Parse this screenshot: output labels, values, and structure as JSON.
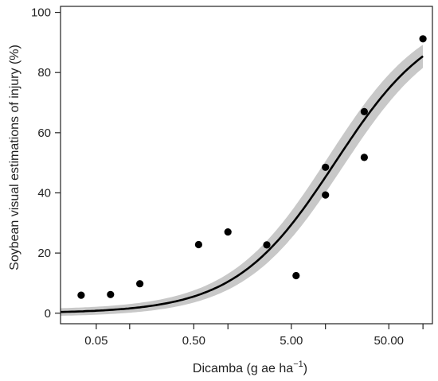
{
  "chart_data": {
    "type": "scatter",
    "xlabel": "Dicamba (g ae ha",
    "xlabel_superscript": "−1",
    "xlabel_suffix": ")",
    "ylabel": "Soybean visual estimations of injury (%)",
    "x_scale": "log",
    "xlim": [
      0.0215,
      140
    ],
    "ylim": [
      -3.5,
      102
    ],
    "x_ticks_major": [
      {
        "value": 0.05,
        "label": "0.05"
      },
      {
        "value": 0.5,
        "label": "0.50"
      },
      {
        "value": 5,
        "label": "5.00"
      },
      {
        "value": 50,
        "label": "50.00"
      }
    ],
    "x_ticks_minor": [
      0.11,
      1.12,
      11.2,
      112
    ],
    "y_ticks": [
      {
        "value": 0,
        "label": "0"
      },
      {
        "value": 20,
        "label": "20"
      },
      {
        "value": 40,
        "label": "40"
      },
      {
        "value": 60,
        "label": "60"
      },
      {
        "value": 80,
        "label": "80"
      },
      {
        "value": 100,
        "label": "100"
      }
    ],
    "grid": false,
    "points": [
      {
        "x": 0.035,
        "y": 6
      },
      {
        "x": 0.07,
        "y": 6.2
      },
      {
        "x": 0.14,
        "y": 9.8
      },
      {
        "x": 0.56,
        "y": 22.8
      },
      {
        "x": 1.12,
        "y": 27
      },
      {
        "x": 2.8,
        "y": 22.7
      },
      {
        "x": 5.6,
        "y": 12.5
      },
      {
        "x": 11.2,
        "y": 48.5
      },
      {
        "x": 11.2,
        "y": 39.3
      },
      {
        "x": 28,
        "y": 67
      },
      {
        "x": 28,
        "y": 51.8
      },
      {
        "x": 112,
        "y": 91.2
      }
    ],
    "fit": {
      "model": "log-logistic",
      "ed50": 14,
      "slope": 0.85,
      "upper": 100,
      "lower": 0,
      "band_halfwidth": 4,
      "x_range": [
        0.0215,
        112
      ]
    },
    "colors": {
      "points": "#000000",
      "fit_line": "#000000",
      "band": "#c8c8c8"
    }
  }
}
